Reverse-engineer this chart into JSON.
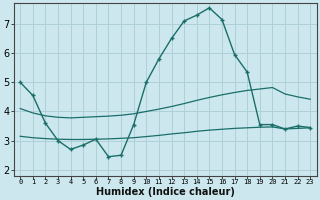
{
  "title": "",
  "xlabel": "Humidex (Indice chaleur)",
  "ylabel": "",
  "background_color": "#cce8ee",
  "grid_color": "#b0d0d8",
  "line_color": "#1a6e6a",
  "x_ticks": [
    0,
    1,
    2,
    3,
    4,
    5,
    6,
    7,
    8,
    9,
    10,
    11,
    12,
    13,
    14,
    15,
    16,
    17,
    18,
    19,
    20,
    21,
    22,
    23
  ],
  "x_tick_labels": [
    "0",
    "1",
    "2",
    "3",
    "4",
    "5",
    "6",
    "7",
    "8",
    "9",
    "10",
    "11",
    "12",
    "13",
    "14",
    "15",
    "16",
    "17",
    "18",
    "19",
    "20",
    "21",
    "22",
    "23"
  ],
  "ylim": [
    1.8,
    7.7
  ],
  "xlim": [
    -0.5,
    23.5
  ],
  "yticks": [
    2,
    3,
    4,
    5,
    6,
    7
  ],
  "series": [
    {
      "x": [
        0,
        1,
        2,
        3,
        4,
        5,
        6,
        7,
        8,
        9,
        10,
        11,
        12,
        13,
        14,
        15,
        16,
        17,
        18,
        19,
        20,
        21,
        22,
        23
      ],
      "y": [
        5.0,
        4.55,
        3.6,
        3.0,
        2.7,
        2.85,
        3.05,
        2.45,
        2.5,
        3.55,
        5.0,
        5.8,
        6.5,
        7.1,
        7.3,
        7.55,
        7.15,
        5.95,
        5.35,
        3.55,
        3.55,
        3.4,
        3.5,
        3.45
      ],
      "has_markers": true
    },
    {
      "x": [
        0,
        1,
        2,
        3,
        4,
        5,
        6,
        7,
        8,
        9,
        10,
        11,
        12,
        13,
        14,
        15,
        16,
        17,
        18,
        19,
        20,
        21,
        22,
        23
      ],
      "y": [
        4.1,
        3.95,
        3.85,
        3.8,
        3.78,
        3.8,
        3.82,
        3.84,
        3.87,
        3.92,
        4.0,
        4.08,
        4.17,
        4.27,
        4.38,
        4.48,
        4.57,
        4.65,
        4.72,
        4.77,
        4.82,
        4.6,
        4.5,
        4.42
      ],
      "has_markers": false
    },
    {
      "x": [
        0,
        1,
        2,
        3,
        4,
        5,
        6,
        7,
        8,
        9,
        10,
        11,
        12,
        13,
        14,
        15,
        16,
        17,
        18,
        19,
        20,
        21,
        22,
        23
      ],
      "y": [
        3.15,
        3.1,
        3.07,
        3.05,
        3.04,
        3.04,
        3.05,
        3.06,
        3.08,
        3.1,
        3.14,
        3.18,
        3.23,
        3.27,
        3.32,
        3.36,
        3.39,
        3.42,
        3.44,
        3.46,
        3.47,
        3.4,
        3.42,
        3.44
      ],
      "has_markers": false
    }
  ]
}
